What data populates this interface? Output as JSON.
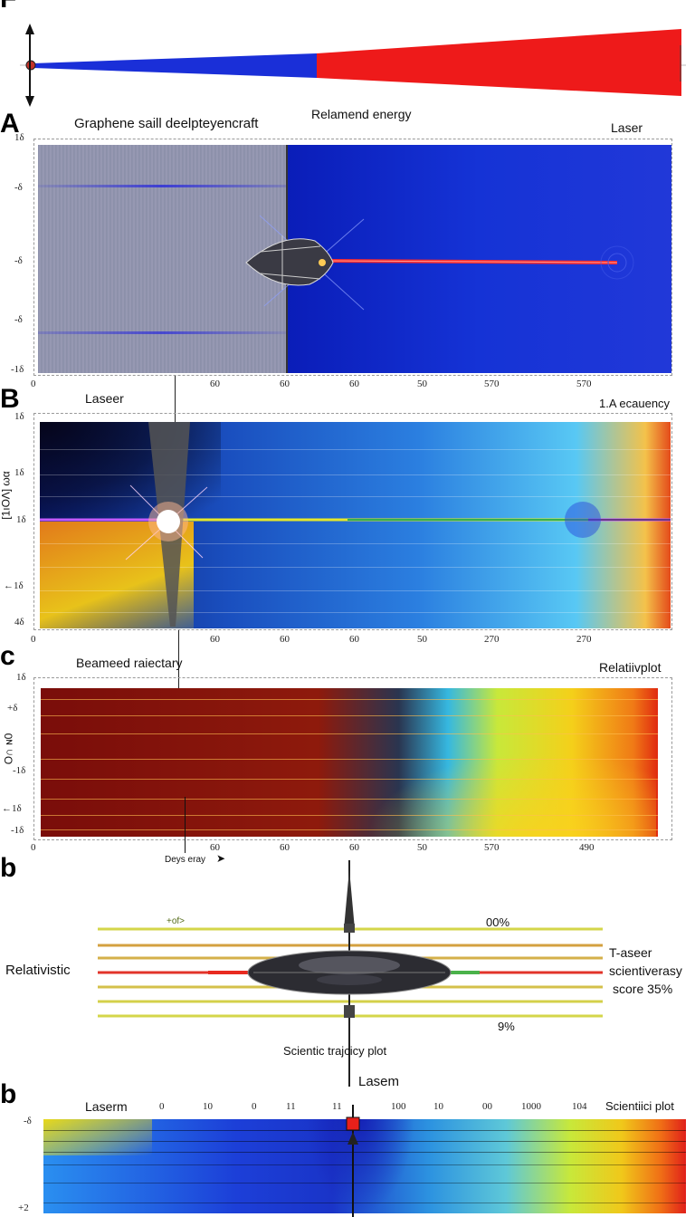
{
  "panel_f": {
    "label": "F"
  },
  "panel_a": {
    "label": "A",
    "title": "Graphene saill deelpteyencraft",
    "subtitle": "Relamend energy",
    "right_label": "Laser",
    "y_ticks": [
      "1δ",
      "-δ",
      "-δ",
      "-δ",
      "-1δ"
    ],
    "x_ticks": [
      "0",
      "60",
      "60",
      "60",
      "50",
      "570",
      "570"
    ]
  },
  "panel_b1": {
    "label": "B",
    "left_label": "Laseer",
    "right_label": "1.A ecauency",
    "y_axis_label": "[1ıΟΛ] ωα",
    "y_ticks": [
      "1δ",
      "1δ",
      "1δ",
      "←1δ",
      "4δ"
    ],
    "x_ticks": [
      "0",
      "60",
      "60",
      "60",
      "50",
      "270",
      "270"
    ]
  },
  "panel_c": {
    "label": "c",
    "left_label": "Beameed raiectary",
    "right_label": "Relatiivplot",
    "y_axis_label": "Ο∩ ɴ0",
    "y_ticks": [
      "1δ",
      "+δ",
      "-1δ",
      "←1δ",
      "-1δ"
    ],
    "x_ticks": [
      "0",
      "60",
      "60",
      "60",
      "50",
      "570",
      "490"
    ],
    "xlabel": "Deys eray"
  },
  "panel_b2": {
    "label": "b",
    "left_label": "Relativistic",
    "top_left_value": "+of>",
    "top_right_value": "00%",
    "bottom_value": "9%",
    "right_text_1": "T-aseer",
    "right_text_2": "scientiverasy",
    "right_text_3": "score 35%",
    "caption": "Scientic trajcicy plot"
  },
  "panel_b3": {
    "label": "b",
    "title": "Lasem",
    "left_label": "Laserm",
    "right_label": "Scientiici plot",
    "x_ticks": [
      "0",
      "10",
      "0",
      "11",
      "11",
      "100",
      "10",
      "00",
      "1000",
      "104"
    ],
    "y_ticks": [
      "-δ",
      "+2"
    ]
  }
}
